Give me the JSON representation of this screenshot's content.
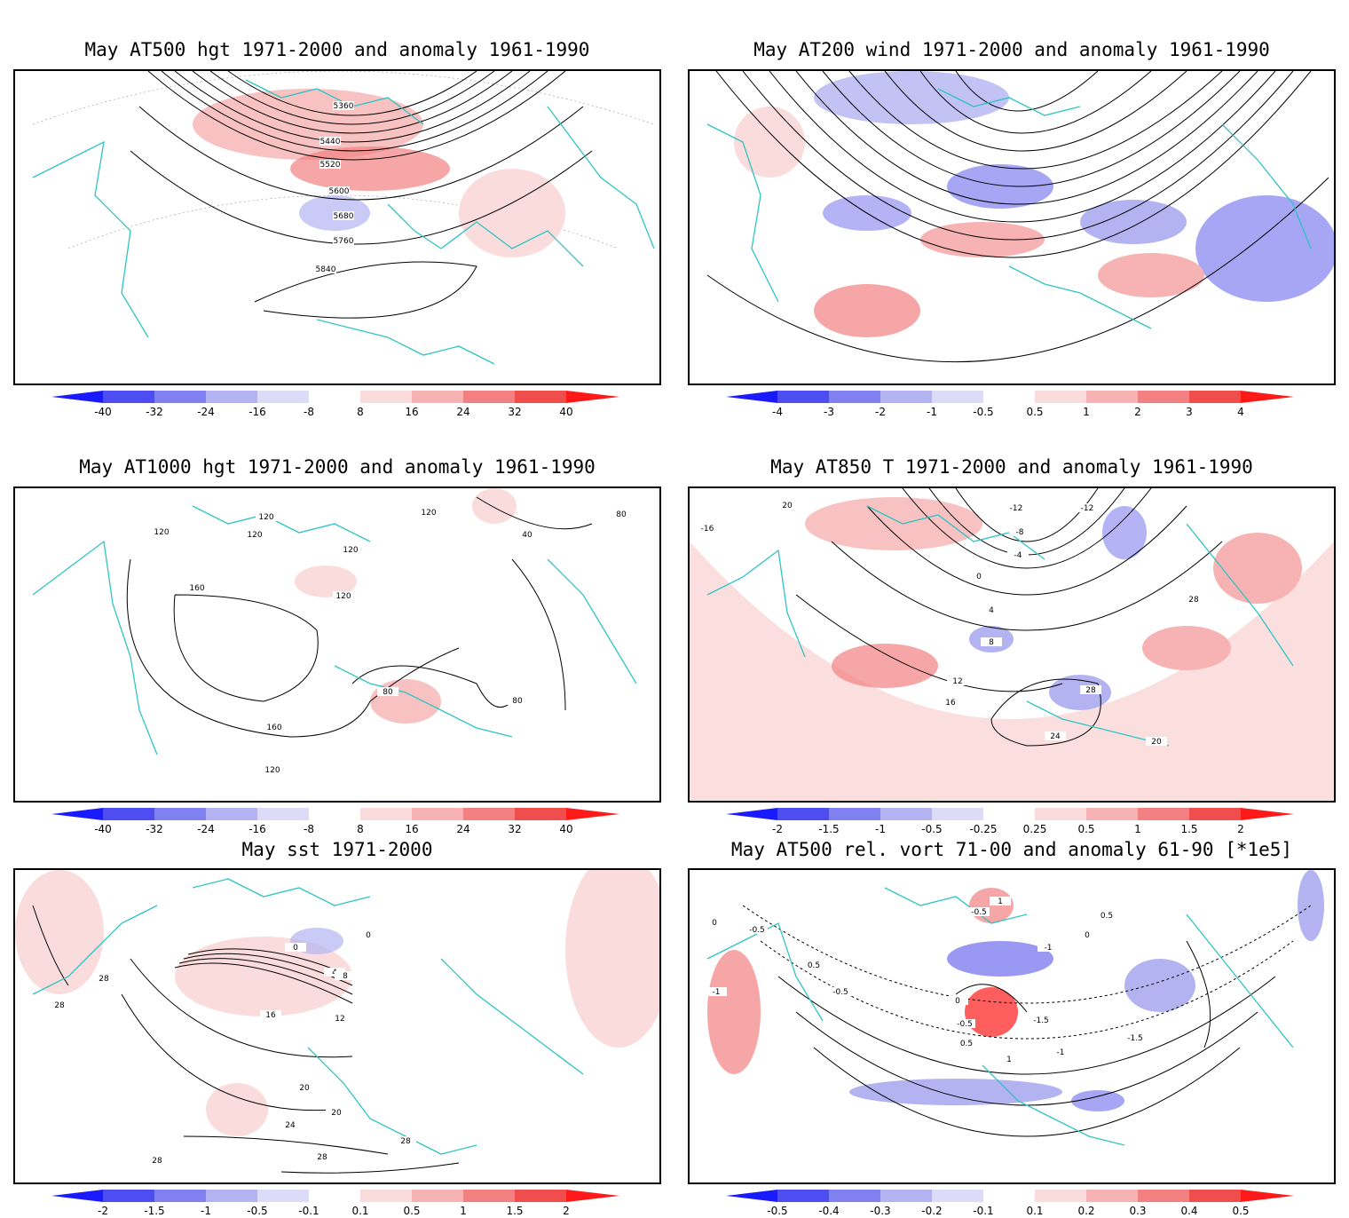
{
  "panels": [
    {
      "title": "May AT500 hgt 1971-2000 and anomaly 1961-1990",
      "colorbar": [
        "-40",
        "-32",
        "-24",
        "-16",
        "-8",
        "8",
        "16",
        "24",
        "32",
        "40"
      ],
      "contour_labels": [
        "5360",
        "5440",
        "5520",
        "5600",
        "5680",
        "5760",
        "5840"
      ]
    },
    {
      "title": "May AT200 wind 1971-2000 and anomaly 1961-1990",
      "colorbar": [
        "-4",
        "-3",
        "-2",
        "-1",
        "-0.5",
        "0.5",
        "1",
        "2",
        "3",
        "4"
      ],
      "contour_labels": []
    },
    {
      "title": "May AT1000 hgt 1971-2000 and anomaly 1961-1990",
      "colorbar": [
        "-40",
        "-32",
        "-24",
        "-16",
        "-8",
        "8",
        "16",
        "24",
        "32",
        "40"
      ],
      "contour_labels": [
        "120",
        "120",
        "120",
        "120",
        "120",
        "120",
        "160",
        "160",
        "120",
        "80",
        "80",
        "80",
        "40"
      ]
    },
    {
      "title": "May AT850 T 1971-2000 and anomaly 1961-1990",
      "colorbar": [
        "-2",
        "-1.5",
        "-1",
        "-0.5",
        "-0.25",
        "0.25",
        "0.5",
        "1",
        "1.5",
        "2"
      ],
      "contour_labels": [
        "20",
        "-16",
        "-12",
        "-12",
        "-8",
        "-4",
        "0",
        "4",
        "8",
        "12",
        "16",
        "28",
        "28",
        "24",
        "20"
      ]
    },
    {
      "title": "May sst 1971-2000",
      "colorbar": [
        "-2",
        "-1.5",
        "-1",
        "-0.5",
        "-0.1",
        "0.1",
        "0.5",
        "1",
        "1.5",
        "2"
      ],
      "contour_labels": [
        "28",
        "28",
        "0",
        "0",
        "4",
        "8",
        "16",
        "12",
        "20",
        "20",
        "24",
        "28",
        "28",
        "28"
      ]
    },
    {
      "title": "May AT500 rel. vort 71-00 and anomaly 61-90 [*1e5]",
      "colorbar": [
        "-0.5",
        "-0.4",
        "-0.3",
        "-0.2",
        "-0.1",
        "0.1",
        "0.2",
        "0.3",
        "0.4",
        "0.5"
      ],
      "contour_labels": [
        "0",
        "-0.5",
        "-1",
        "0.5",
        "-0.5",
        "1",
        "-0.5",
        "0",
        "-1",
        "-1.5",
        "-0.5",
        "0.5",
        "1",
        "-1",
        "-1.5",
        "0",
        "0.5"
      ]
    }
  ],
  "colors": {
    "coast": "#2ec4c4",
    "blue_scale": [
      "#1a1aff",
      "#4d4df2",
      "#8080f0",
      "#b3b3f2",
      "#dcdcf8"
    ],
    "red_scale": [
      "#fbdcdc",
      "#f7b3b3",
      "#f28080",
      "#f04d4d",
      "#ff1a1a"
    ]
  }
}
